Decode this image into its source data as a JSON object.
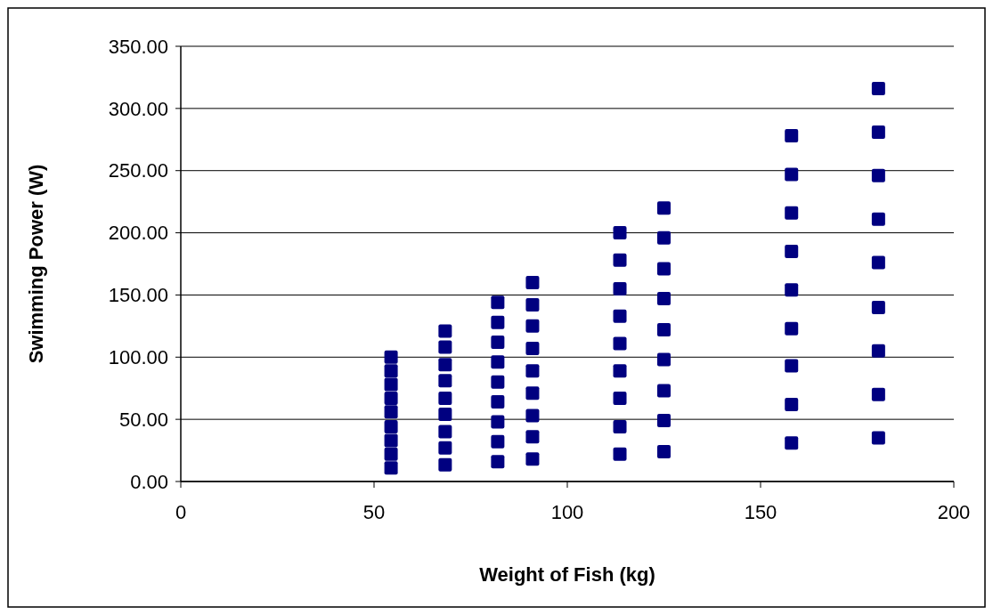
{
  "chart_data": {
    "type": "scatter",
    "xlabel": "Weight of Fish (kg)",
    "ylabel": "Swimming Power (W)",
    "xlim": [
      0,
      200
    ],
    "ylim": [
      0,
      350
    ],
    "xticks": [
      0,
      50,
      100,
      150,
      200
    ],
    "yticks": [
      {
        "value": 0,
        "label": "0.00"
      },
      {
        "value": 50,
        "label": "50.00"
      },
      {
        "value": 100,
        "label": "100.00"
      },
      {
        "value": 150,
        "label": "150.00"
      },
      {
        "value": 200,
        "label": "200.00"
      },
      {
        "value": 250,
        "label": "250.00"
      },
      {
        "value": 300,
        "label": "300.00"
      },
      {
        "value": 350,
        "label": "350.00"
      }
    ],
    "grid": "y",
    "marker": "square",
    "series": [
      {
        "color": "#000080",
        "x": [
          54.4,
          54.4,
          54.4,
          54.4,
          54.4,
          54.4,
          54.4,
          54.4,
          54.4,
          68.4,
          68.4,
          68.4,
          68.4,
          68.4,
          68.4,
          68.4,
          68.4,
          68.4,
          82,
          82,
          82,
          82,
          82,
          82,
          82,
          82,
          82,
          91,
          91,
          91,
          91,
          91,
          91,
          91,
          91,
          91,
          113.6,
          113.6,
          113.6,
          113.6,
          113.6,
          113.6,
          113.6,
          113.6,
          113.6,
          125,
          125,
          125,
          125,
          125,
          125,
          125,
          125,
          125,
          158,
          158,
          158,
          158,
          158,
          158,
          158,
          158,
          158,
          180.5,
          180.5,
          180.5,
          180.5,
          180.5,
          180.5,
          180.5,
          180.5,
          180.5
        ],
        "values": [
          11,
          22,
          33,
          44,
          56,
          67,
          78,
          89,
          100,
          13.5,
          27,
          40,
          54,
          67,
          81,
          94,
          108,
          121,
          16,
          32,
          48,
          64,
          80,
          96,
          112,
          128,
          144,
          18,
          36,
          53,
          71,
          89,
          107,
          125,
          142,
          160,
          22,
          44,
          67,
          89,
          111,
          133,
          155,
          178,
          200,
          24,
          49,
          73,
          98,
          122,
          147,
          171,
          196,
          220,
          31,
          62,
          93,
          123,
          154,
          185,
          216,
          247,
          278,
          35,
          70,
          105,
          140,
          176,
          211,
          246,
          281,
          316
        ]
      }
    ]
  }
}
